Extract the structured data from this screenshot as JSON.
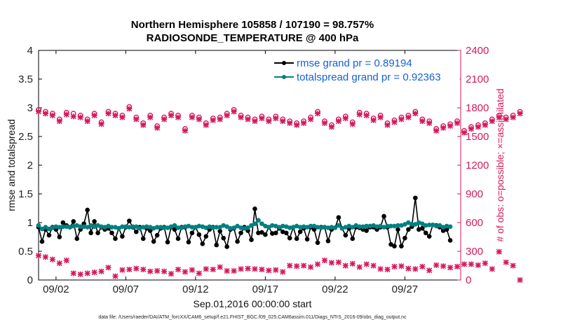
{
  "chart_data": {
    "type": "line",
    "title_line1": "Northern Hemisphere 105858 / 107190 = 98.757%",
    "title_line2": "RADIOSONDE_TEMPERATURE @ 400 hPa",
    "xlabel": "Sep.01,2016 00:00:00 start",
    "ylabel_left": "rmse and totalspread",
    "ylabel_right": "# of obs: o=possible; ×=assimilated",
    "footnote": "data file: /Users/raeder/DAI/ATM_forcXX/CAM6_setup/f.e21.FHIST_BGC.f09_025.CAM6assim.011/Diags_NTrS_2016-09/obs_diag_output.nc",
    "x_ticks": [
      "09/02",
      "09/07",
      "09/12",
      "09/17",
      "09/22",
      "09/27"
    ],
    "x_tick_days": [
      2,
      7,
      12,
      17,
      22,
      27
    ],
    "xlim": [
      0.75,
      31.0
    ],
    "ylim_left": [
      0,
      4
    ],
    "ylim_right": [
      0,
      2400
    ],
    "y_ticks_left": [
      "0",
      "0.5",
      "1",
      "1.5",
      "2",
      "2.5",
      "3",
      "3.5",
      "4"
    ],
    "y_ticks_right": [
      "0",
      "300",
      "600",
      "900",
      "1200",
      "1500",
      "1800",
      "2100",
      "2400"
    ],
    "colors": {
      "rmse": "#000000",
      "spread": "#008080",
      "obs": "#d6185c",
      "legend_text": "#1560d6"
    },
    "series": [
      {
        "name": "rmse grand pr = 0.89194",
        "axis": "left",
        "step_days": 0.25,
        "start_day": 0.75,
        "values": [
          0.92,
          0.67,
          0.88,
          0.78,
          0.92,
          0.88,
          0.75,
          1.0,
          0.95,
          0.92,
          1.02,
          0.72,
          0.88,
          0.98,
          1.22,
          0.82,
          1.02,
          0.82,
          0.92,
          0.88,
          0.9,
          0.82,
          0.72,
          0.9,
          0.76,
          0.92,
          1.03,
          0.92,
          0.84,
          0.92,
          0.72,
          0.9,
          0.86,
          0.67,
          0.78,
          0.9,
          0.92,
          0.66,
          0.92,
          0.88,
          0.72,
          0.92,
          0.92,
          0.66,
          0.82,
          0.92,
          0.79,
          0.63,
          0.76,
          0.88,
          0.92,
          0.61,
          0.85,
          0.73,
          0.58,
          0.88,
          0.9,
          0.67,
          0.82,
          0.92,
          0.86,
          0.7,
          1.24,
          0.82,
          0.83,
          0.79,
          0.92,
          0.81,
          0.82,
          0.9,
          0.84,
          0.82,
          0.73,
          0.92,
          0.72,
          0.84,
          0.9,
          0.71,
          0.92,
          0.88,
          0.65,
          0.92,
          0.92,
          0.68,
          0.88,
          0.91,
          1.09,
          0.9,
          0.78,
          0.9,
          0.72,
          0.92,
          0.91,
          0.88,
          0.86,
          0.92,
          0.92,
          0.88,
          0.92,
          1.11,
          0.92,
          0.62,
          0.59,
          0.88,
          0.59,
          0.73,
          0.88,
          0.93,
          1.43,
          0.88,
          0.9,
          0.82,
          0.76,
          0.96,
          0.95,
          0.92,
          0.86,
          0.88,
          0.69
        ]
      },
      {
        "name": "totalspread grand pr = 0.92363",
        "axis": "left",
        "step_days": 0.25,
        "start_day": 0.75,
        "values": [
          0.95,
          0.89,
          0.92,
          0.89,
          0.91,
          0.93,
          0.92,
          0.93,
          0.93,
          0.92,
          0.94,
          0.95,
          0.93,
          0.93,
          0.92,
          0.95,
          0.93,
          0.95,
          0.93,
          0.92,
          0.94,
          0.92,
          0.92,
          0.9,
          0.93,
          0.93,
          0.92,
          0.93,
          0.93,
          0.9,
          0.92,
          0.93,
          0.92,
          0.9,
          0.92,
          0.92,
          0.91,
          0.91,
          0.93,
          0.95,
          0.91,
          0.91,
          0.93,
          0.94,
          0.92,
          0.92,
          0.94,
          0.93,
          0.91,
          0.93,
          0.91,
          0.92,
          0.92,
          0.95,
          0.93,
          0.9,
          0.91,
          0.94,
          0.91,
          0.9,
          0.91,
          0.95,
          0.98,
          1.04,
          0.98,
          0.94,
          0.92,
          0.95,
          0.94,
          0.92,
          0.94,
          0.93,
          0.91,
          0.92,
          0.94,
          0.92,
          0.93,
          0.92,
          0.94,
          0.94,
          0.92,
          0.91,
          0.92,
          0.91,
          0.92,
          0.91,
          0.95,
          0.9,
          0.92,
          0.94,
          0.92,
          0.95,
          0.93,
          0.93,
          0.94,
          0.94,
          0.95,
          0.93,
          0.94,
          0.92,
          0.94,
          0.94,
          0.94,
          0.95,
          0.95,
          0.97,
          1.0,
          0.97,
          0.97,
          1.0,
          0.98,
          0.95,
          0.96,
          0.96,
          0.94,
          0.95,
          0.92,
          0.94,
          0.93
        ]
      }
    ],
    "obs_possible": {
      "axis": "right",
      "step_days": 0.5,
      "start_day": 0.75,
      "values": [
        1780,
        1760,
        1740,
        1680,
        1750,
        1740,
        1720,
        1680,
        1740,
        1650,
        1760,
        1740,
        1720,
        1810,
        1700,
        1640,
        1720,
        1610,
        1700,
        1740,
        1720,
        1580,
        1720,
        1700,
        1640,
        1690,
        1700,
        1740,
        1780,
        1720,
        1700,
        1680,
        1710,
        1680,
        1710,
        1680,
        1660,
        1640,
        1660,
        1700,
        1760,
        1660,
        1620,
        1680,
        1710,
        1650,
        1750,
        1740,
        1690,
        1720,
        1640,
        1670,
        1700,
        1720,
        1760,
        1680,
        1660,
        1580,
        1610,
        1630,
        1660,
        1560,
        1600,
        1620,
        1640,
        1680,
        1720,
        1700,
        1720,
        1760
      ]
    },
    "obs_assimilated": {
      "axis": "right",
      "step_days": 0.5,
      "start_day": 0.75,
      "values": [
        1760,
        1740,
        1720,
        1660,
        1730,
        1710,
        1700,
        1660,
        1720,
        1630,
        1740,
        1720,
        1700,
        1790,
        1680,
        1620,
        1700,
        1590,
        1680,
        1720,
        1700,
        1560,
        1700,
        1680,
        1620,
        1670,
        1680,
        1720,
        1760,
        1700,
        1680,
        1660,
        1690,
        1660,
        1690,
        1660,
        1640,
        1620,
        1640,
        1680,
        1740,
        1640,
        1600,
        1660,
        1690,
        1630,
        1730,
        1720,
        1670,
        1700,
        1620,
        1650,
        1680,
        1700,
        1740,
        1660,
        1640,
        1560,
        1590,
        1610,
        1640,
        1540,
        1580,
        1600,
        1620,
        1660,
        1700,
        1680,
        1700,
        1740
      ]
    },
    "obs_low": {
      "axis": "right",
      "step_days": 0.5,
      "start_day": 0.75,
      "values": [
        255,
        240,
        215,
        175,
        205,
        70,
        60,
        70,
        80,
        90,
        130,
        40,
        105,
        110,
        120,
        110,
        90,
        95,
        90,
        65,
        110,
        85,
        105,
        70,
        115,
        110,
        135,
        95,
        95,
        115,
        120,
        115,
        110,
        100,
        105,
        85,
        150,
        145,
        150,
        135,
        165,
        205,
        180,
        185,
        150,
        170,
        135,
        165,
        150,
        115,
        110,
        140,
        145,
        120,
        115,
        140,
        100,
        155,
        145,
        130,
        140,
        165,
        165,
        155,
        175,
        115,
        295,
        185,
        150,
        0
      ]
    }
  }
}
